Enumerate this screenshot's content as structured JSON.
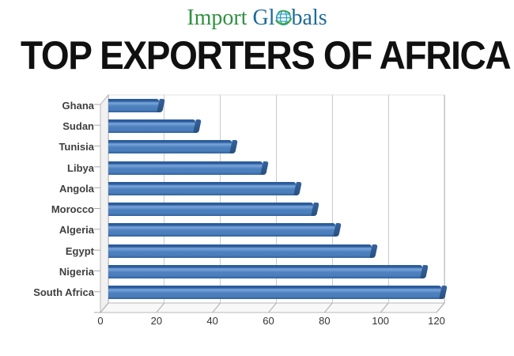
{
  "logo": {
    "word1": "Import",
    "word2_prefix": "Gl",
    "word2_suffix": "bals",
    "green": "#2e9140",
    "blue": "#1b6a96"
  },
  "title": "TOP EXPORTERS OF AFRICA",
  "chart_data": {
    "type": "bar",
    "orientation": "horizontal",
    "style": "3d",
    "title": "TOP EXPORTERS OF AFRICA",
    "categories": [
      "Ghana",
      "Sudan",
      "Tunisia",
      "Libya",
      "Angola",
      "Morocco",
      "Algeria",
      "Egypt",
      "Nigeria",
      "South Africa"
    ],
    "values": [
      18,
      31,
      44,
      55,
      67,
      73,
      81,
      94,
      112,
      119
    ],
    "xlim": [
      0,
      120
    ],
    "x_ticks": [
      0,
      20,
      40,
      60,
      80,
      100,
      120
    ],
    "xlabel": "",
    "ylabel": "",
    "grid": true,
    "legend": false,
    "bar_color": "#4a7ebb",
    "bar_edge_color": "#2b5c9d",
    "gridline_color": "#cbcbcb"
  }
}
